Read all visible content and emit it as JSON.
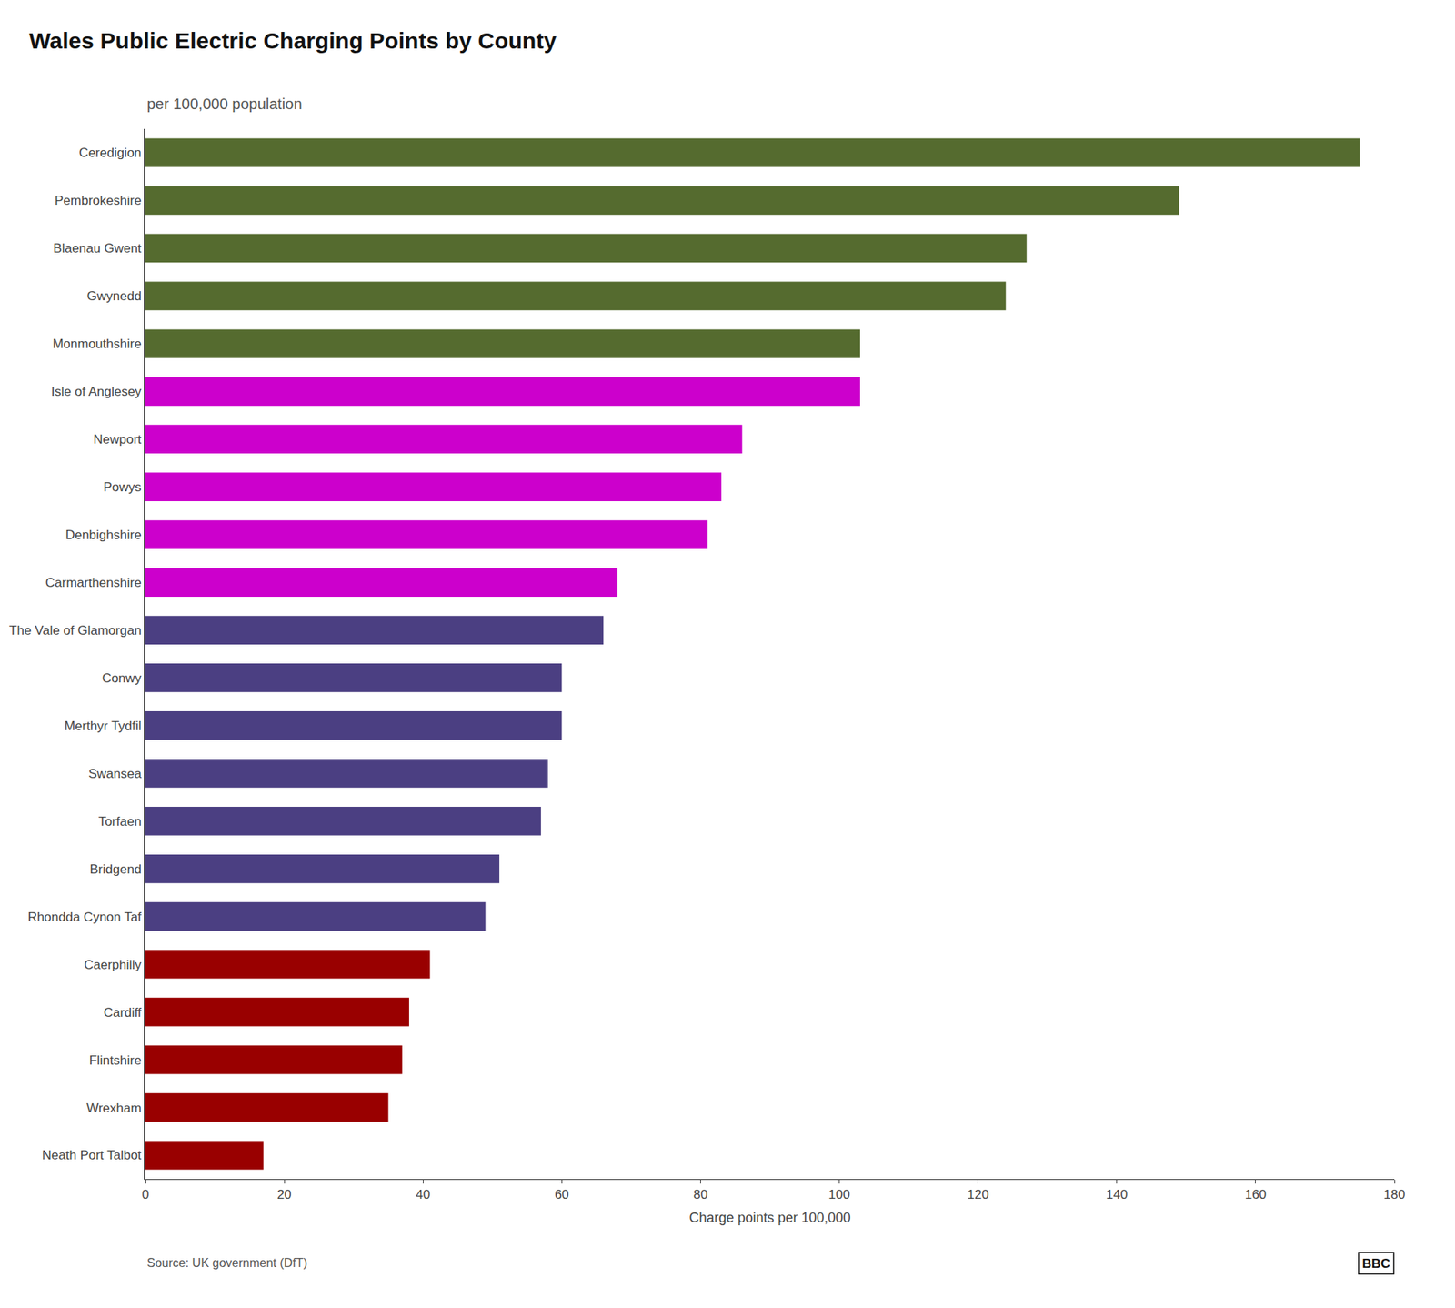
{
  "chart_data": {
    "type": "bar",
    "title": "Wales Public Electric Charging Points by County",
    "subtitle": "per 100,000 population",
    "xlabel": "Charge points per 100,000",
    "source": "Source: UK government (DfT)",
    "annotations": [
      "BBC"
    ],
    "orientation": "horizontal",
    "categories": [
      "Ceredigion",
      "Pembrokeshire",
      "Blaenau Gwent",
      "Gwynedd",
      "Monmouthshire",
      "Isle of Anglesey",
      "Newport",
      "Powys",
      "Denbighshire",
      "Carmarthenshire",
      "The Vale of Glamorgan",
      "Conwy",
      "Merthyr Tydfil",
      "Swansea",
      "Torfaen",
      "Bridgend",
      "Rhondda Cynon Taf",
      "Caerphilly",
      "Cardiff",
      "Flintshire",
      "Wrexham",
      "Neath Port Talbot"
    ],
    "values": [
      175,
      149,
      127,
      124,
      103,
      103,
      86,
      83,
      81,
      68,
      66,
      60,
      60,
      58,
      57,
      51,
      49,
      41,
      38,
      37,
      35,
      17
    ],
    "colors": [
      "#556B2F",
      "#556B2F",
      "#556B2F",
      "#556B2F",
      "#556B2F",
      "#CC00CC",
      "#CC00CC",
      "#CC00CC",
      "#CC00CC",
      "#CC00CC",
      "#4B3F82",
      "#4B3F82",
      "#4B3F82",
      "#4B3F82",
      "#4B3F82",
      "#4B3F82",
      "#4B3F82",
      "#990000",
      "#990000",
      "#990000",
      "#990000",
      "#990000"
    ],
    "xlim": [
      0,
      180
    ],
    "xticks": [
      0,
      20,
      40,
      60,
      80,
      100,
      120,
      140,
      160,
      180
    ],
    "grid": false
  }
}
